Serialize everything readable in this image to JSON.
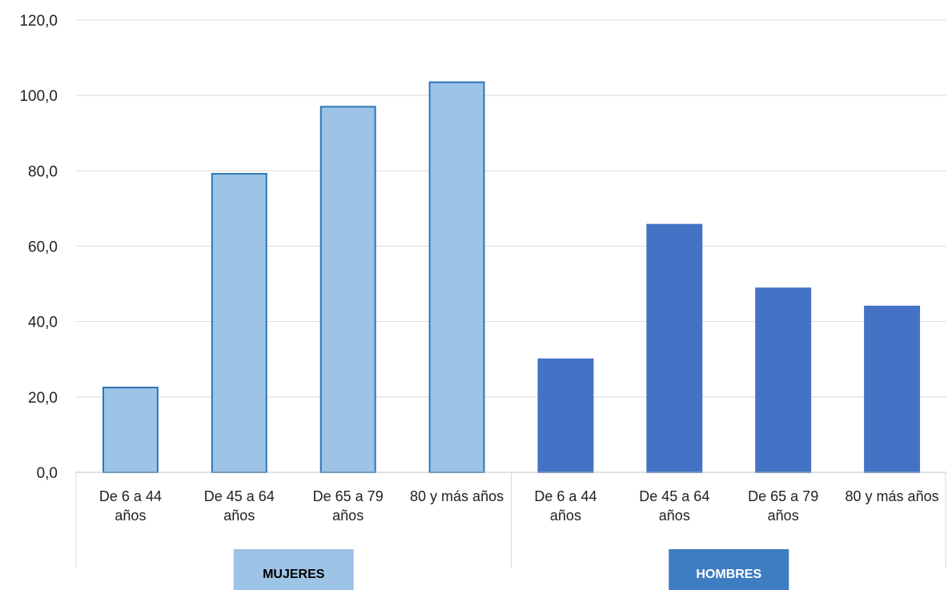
{
  "chart_data": {
    "type": "bar",
    "ylim": [
      0,
      120
    ],
    "yticks": [
      "0,0",
      "20,0",
      "40,0",
      "60,0",
      "80,0",
      "100,0",
      "120,0"
    ],
    "grid": true,
    "groups": [
      {
        "name": "MUJERES",
        "color": "#9DC3E6",
        "border": "#2E75B6",
        "label_bg": "#9DC3E6",
        "label_color": "#000000",
        "categories": [
          [
            "De 6 a 44",
            "años"
          ],
          [
            "De 45 a 64",
            "años"
          ],
          [
            "De 65 a 79",
            "años"
          ],
          [
            "80 y más años"
          ]
        ],
        "values": [
          22.5,
          79.2,
          97.0,
          103.5
        ]
      },
      {
        "name": "HOMBRES",
        "color": "#4472C4",
        "border": "#4472C4",
        "label_bg": "#3E7DC2",
        "label_color": "#ffffff",
        "categories": [
          [
            "De 6 a 44",
            "años"
          ],
          [
            "De 45 a 64",
            "años"
          ],
          [
            "De 65 a 79",
            "años"
          ],
          [
            "80 y más años"
          ]
        ],
        "values": [
          30.0,
          65.7,
          48.8,
          44.0
        ]
      }
    ]
  }
}
